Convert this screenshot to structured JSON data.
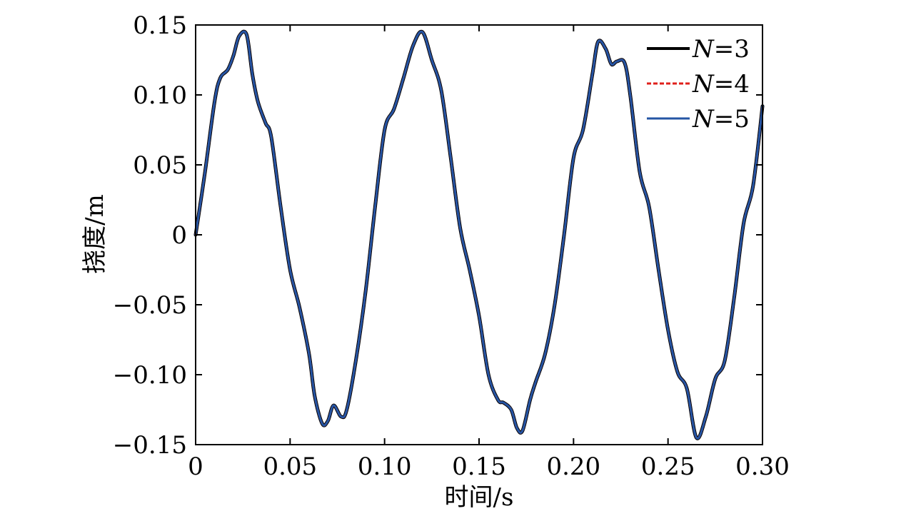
{
  "chart_data": {
    "type": "line",
    "xlabel": "时间/s",
    "ylabel": "挠度/m",
    "xlim": [
      0,
      0.3
    ],
    "ylim": [
      -0.15,
      0.15
    ],
    "x_ticks": [
      0,
      0.05,
      0.1,
      0.15,
      0.2,
      0.25,
      0.3
    ],
    "x_tick_labels": [
      "0",
      "0.05",
      "0.10",
      "0.15",
      "0.20",
      "0.25",
      "0.30"
    ],
    "y_ticks": [
      0.15,
      0.1,
      0.05,
      0,
      -0.05,
      -0.1,
      -0.15
    ],
    "y_tick_labels": [
      "0.15",
      "0.10",
      "0.05",
      "0",
      "−0.05",
      "−0.10",
      "−0.15"
    ],
    "grid": false,
    "legend_position": "top-right",
    "x": [
      0,
      0.005,
      0.01,
      0.013,
      0.017,
      0.02,
      0.023,
      0.027,
      0.03,
      0.033,
      0.037,
      0.04,
      0.045,
      0.05,
      0.055,
      0.06,
      0.063,
      0.067,
      0.07,
      0.073,
      0.077,
      0.08,
      0.085,
      0.09,
      0.095,
      0.1,
      0.105,
      0.11,
      0.115,
      0.12,
      0.125,
      0.13,
      0.135,
      0.14,
      0.145,
      0.15,
      0.155,
      0.16,
      0.163,
      0.167,
      0.17,
      0.173,
      0.177,
      0.18,
      0.185,
      0.19,
      0.195,
      0.2,
      0.205,
      0.21,
      0.213,
      0.217,
      0.22,
      0.223,
      0.227,
      0.23,
      0.235,
      0.24,
      0.245,
      0.25,
      0.255,
      0.26,
      0.265,
      0.27,
      0.275,
      0.28,
      0.285,
      0.29,
      0.295,
      0.3
    ],
    "series": [
      {
        "name": "N=3",
        "name_var": "N",
        "name_value": "=3",
        "color": "#000000",
        "dash": "solid",
        "values": [
          0,
          0.045,
          0.095,
          0.112,
          0.118,
          0.128,
          0.142,
          0.143,
          0.115,
          0.095,
          0.08,
          0.07,
          0.02,
          -0.025,
          -0.052,
          -0.085,
          -0.115,
          -0.135,
          -0.133,
          -0.122,
          -0.13,
          -0.125,
          -0.088,
          -0.04,
          0.02,
          0.075,
          0.09,
          0.112,
          0.135,
          0.145,
          0.125,
          0.103,
          0.055,
          0.005,
          -0.025,
          -0.058,
          -0.1,
          -0.118,
          -0.12,
          -0.125,
          -0.138,
          -0.14,
          -0.118,
          -0.105,
          -0.085,
          -0.05,
          0.0,
          0.055,
          0.075,
          0.115,
          0.138,
          0.133,
          0.122,
          0.124,
          0.123,
          0.1,
          0.045,
          0.02,
          -0.025,
          -0.068,
          -0.098,
          -0.11,
          -0.145,
          -0.13,
          -0.103,
          -0.09,
          -0.045,
          0.008,
          0.035,
          0.092
        ]
      },
      {
        "name": "N=4",
        "name_var": "N",
        "name_value": "=4",
        "color": "#e0201b",
        "dash": "dashed",
        "values": [
          0,
          0.045,
          0.095,
          0.112,
          0.118,
          0.128,
          0.142,
          0.143,
          0.115,
          0.095,
          0.08,
          0.07,
          0.02,
          -0.025,
          -0.052,
          -0.085,
          -0.115,
          -0.135,
          -0.133,
          -0.122,
          -0.13,
          -0.125,
          -0.088,
          -0.04,
          0.02,
          0.075,
          0.09,
          0.112,
          0.135,
          0.145,
          0.125,
          0.103,
          0.055,
          0.005,
          -0.025,
          -0.058,
          -0.1,
          -0.118,
          -0.12,
          -0.125,
          -0.138,
          -0.14,
          -0.118,
          -0.105,
          -0.085,
          -0.05,
          0.0,
          0.055,
          0.075,
          0.115,
          0.138,
          0.133,
          0.122,
          0.124,
          0.123,
          0.1,
          0.045,
          0.02,
          -0.025,
          -0.068,
          -0.098,
          -0.11,
          -0.145,
          -0.13,
          -0.103,
          -0.09,
          -0.045,
          0.008,
          0.035,
          0.092
        ]
      },
      {
        "name": "N=5",
        "name_var": "N",
        "name_value": "=5",
        "color": "#2455a4",
        "dash": "solid",
        "values": [
          0,
          0.045,
          0.095,
          0.112,
          0.118,
          0.128,
          0.142,
          0.143,
          0.115,
          0.095,
          0.08,
          0.07,
          0.02,
          -0.025,
          -0.052,
          -0.085,
          -0.115,
          -0.135,
          -0.133,
          -0.122,
          -0.13,
          -0.125,
          -0.088,
          -0.04,
          0.02,
          0.075,
          0.09,
          0.112,
          0.135,
          0.145,
          0.125,
          0.103,
          0.055,
          0.005,
          -0.025,
          -0.058,
          -0.1,
          -0.118,
          -0.12,
          -0.125,
          -0.138,
          -0.14,
          -0.118,
          -0.105,
          -0.085,
          -0.05,
          0.0,
          0.055,
          0.075,
          0.115,
          0.138,
          0.133,
          0.122,
          0.124,
          0.123,
          0.1,
          0.045,
          0.02,
          -0.025,
          -0.068,
          -0.098,
          -0.11,
          -0.145,
          -0.13,
          -0.103,
          -0.09,
          -0.045,
          0.008,
          0.035,
          0.092
        ]
      }
    ]
  }
}
